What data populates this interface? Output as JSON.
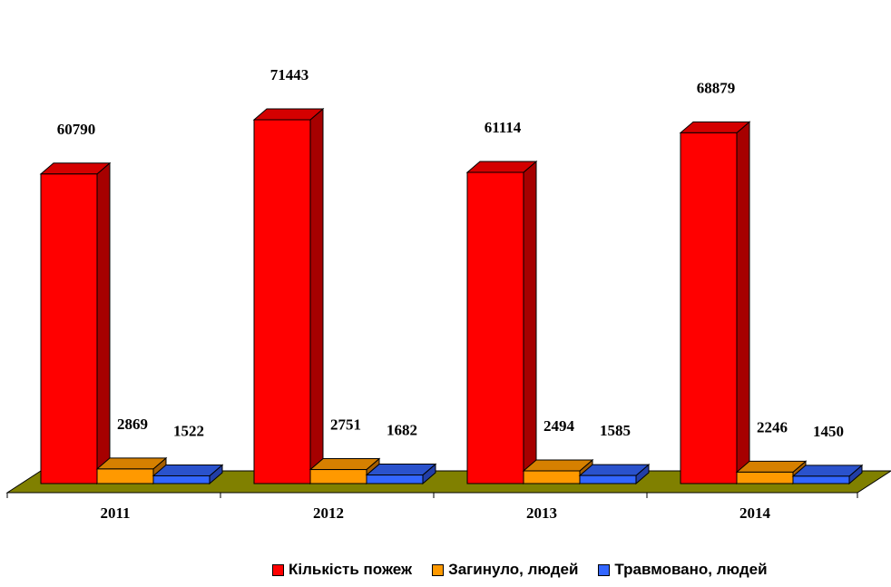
{
  "chart_data": {
    "type": "bar",
    "categories": [
      "2011",
      "2012",
      "2013",
      "2014"
    ],
    "series": [
      {
        "name": "Кількість пожеж",
        "values": [
          60790,
          71443,
          61114,
          68879
        ]
      },
      {
        "name": "Загинуло, людей",
        "values": [
          2869,
          2751,
          2494,
          2246
        ]
      },
      {
        "name": "Травмовано, людей",
        "values": [
          1522,
          1682,
          1585,
          1450
        ]
      }
    ],
    "value_labels": [
      [
        "60790",
        "2869",
        "1522"
      ],
      [
        "71443",
        "2751",
        "1682"
      ],
      [
        "61114",
        "2494",
        "1585"
      ],
      [
        "68879",
        "2246",
        "1450"
      ]
    ],
    "legend_position": "bottom",
    "grid": false,
    "style": "3d-bar"
  },
  "colors": {
    "series_front": [
      "#ff0000",
      "#ff9900",
      "#3366ff"
    ],
    "series_side": [
      "#a60000",
      "#a65f00",
      "#223ea6"
    ],
    "series_top": [
      "#d40000",
      "#d68000",
      "#2a52cc"
    ],
    "floor": "#808000"
  }
}
